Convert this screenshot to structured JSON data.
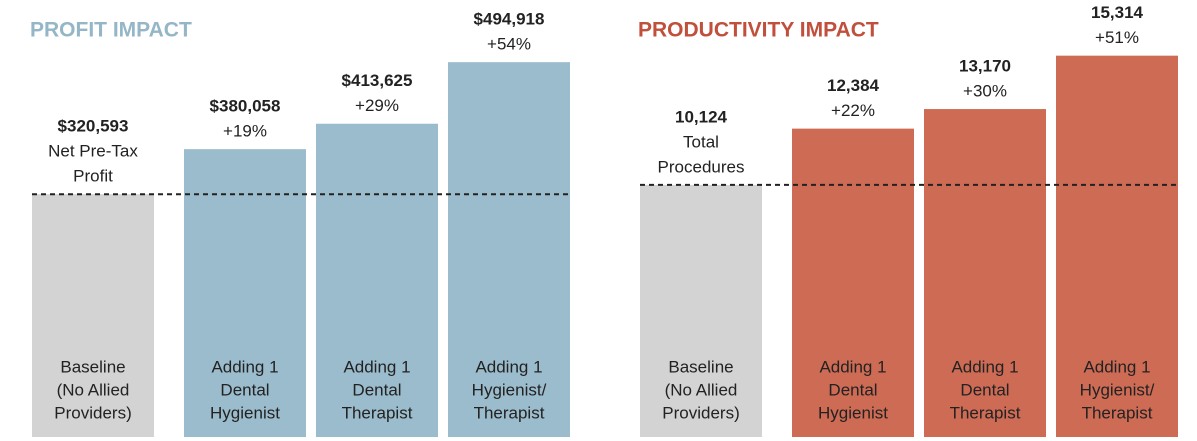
{
  "chart_data": [
    {
      "type": "bar",
      "title": "PROFIT IMPACT",
      "title_color": "#94b6c7",
      "categories": [
        [
          "Baseline",
          "(No Allied",
          "Providers)"
        ],
        [
          "Adding 1",
          "Dental",
          "Hygienist"
        ],
        [
          "Adding 1",
          "Dental",
          "Therapist"
        ],
        [
          "Adding 1",
          "Hygienist/",
          "Therapist"
        ]
      ],
      "values": [
        320593,
        380058,
        413625,
        494918
      ],
      "value_labels": [
        "$320,593",
        "$380,058",
        "$413,625",
        "$494,918"
      ],
      "sublabels": [
        [
          "Net Pre-Tax",
          "Profit"
        ],
        [
          "+19%"
        ],
        [
          "+29%"
        ],
        [
          "+54%"
        ]
      ],
      "colors": [
        "#d3d3d4",
        "#9bbccc",
        "#9bbccc",
        "#9bbccc"
      ],
      "ylim": [
        0,
        577000
      ],
      "reference_line": true
    },
    {
      "type": "bar",
      "title": "PRODUCTIVITY IMPACT",
      "title_color": "#c0503c",
      "categories": [
        [
          "Baseline",
          "(No Allied",
          "Providers)"
        ],
        [
          "Adding 1",
          "Dental",
          "Hygienist"
        ],
        [
          "Adding 1",
          "Dental",
          "Therapist"
        ],
        [
          "Adding 1",
          "Hygienist/",
          "Therapist"
        ]
      ],
      "values": [
        10124,
        12384,
        13170,
        15314
      ],
      "value_labels": [
        "10,124",
        "12,384",
        "13,170",
        "15,314"
      ],
      "sublabels": [
        [
          "Total",
          "Procedures"
        ],
        [
          "+22%"
        ],
        [
          "+30%"
        ],
        [
          "+51%"
        ]
      ],
      "colors": [
        "#d3d3d4",
        "#cd6b55",
        "#cd6b55",
        "#cd6b55"
      ],
      "ylim": [
        0,
        17550
      ],
      "reference_line": true
    }
  ]
}
